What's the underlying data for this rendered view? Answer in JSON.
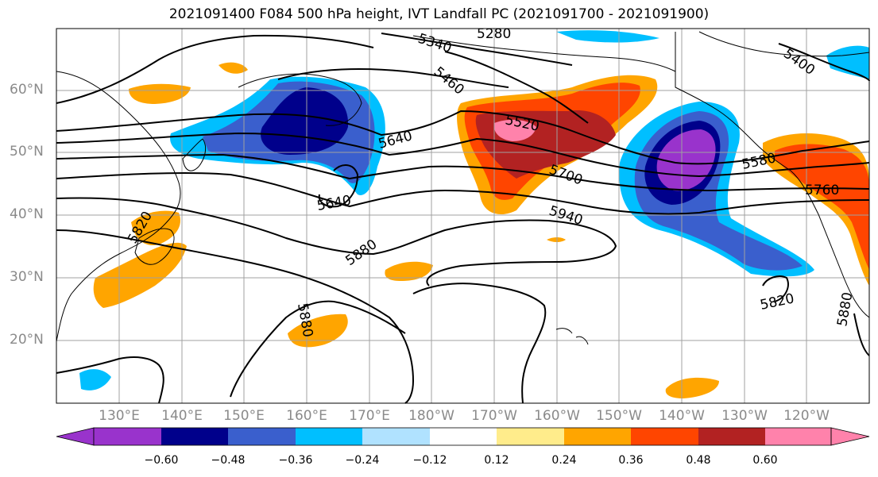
{
  "title": "2021091400 F084 500 hPa height, IVT Landfall PC (2021091700 - 2021091900)",
  "lat_labels": [
    "60°N",
    "50°N",
    "40°N",
    "30°N",
    "20°N"
  ],
  "lon_labels": [
    "130°E",
    "140°E",
    "150°E",
    "160°E",
    "170°E",
    "180°W",
    "170°W",
    "160°W",
    "150°W",
    "140°W",
    "130°W",
    "120°W"
  ],
  "contour_labels": [
    "5280",
    "5340",
    "5400",
    "5460",
    "5520",
    "5580",
    "5640",
    "5640",
    "5700",
    "5760",
    "5820",
    "5820",
    "5880",
    "5880",
    "5880",
    "5940"
  ],
  "colorbar": {
    "ticks": [
      "−0.60",
      "−0.48",
      "−0.36",
      "−0.24",
      "−0.12",
      "0.12",
      "0.24",
      "0.36",
      "0.48",
      "0.60"
    ],
    "colors": [
      "#9933cc",
      "#00008b",
      "#3a5fcd",
      "#00bfff",
      "#b0e2ff",
      "#ffffff",
      "#ffec8b",
      "#ffa500",
      "#ff4500",
      "#b22222",
      "#ff82ab"
    ]
  },
  "colors": {
    "neg_strong": "#9933cc",
    "neg_dark": "#00008b",
    "neg_mid": "#3a5fcd",
    "neg_light": "#00bfff",
    "pos_light": "#ffec8b",
    "pos_mid": "#ffa500",
    "pos_strong": "#ff4500",
    "pos_dark": "#b22222",
    "pos_max": "#ff82ab"
  }
}
